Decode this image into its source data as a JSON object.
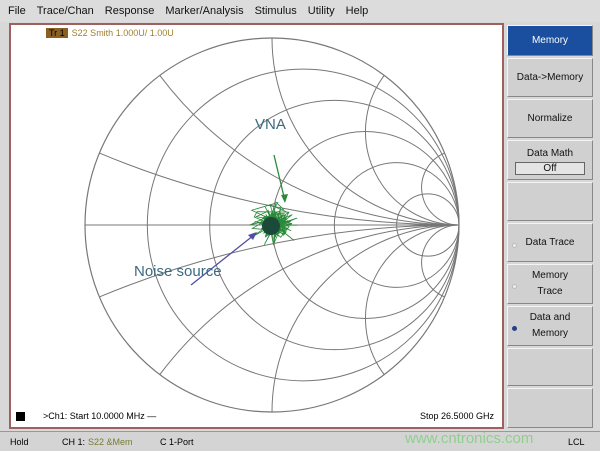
{
  "menu": [
    "File",
    "Trace/Chan",
    "Response",
    "Marker/Analysis",
    "Stimulus",
    "Utility",
    "Help"
  ],
  "trace": {
    "tag": "Tr 1",
    "label": "S22 Smith 1.000U/  1.00U"
  },
  "annotations": {
    "vna": "VNA",
    "noise": "Noise source"
  },
  "footer": {
    "start": ">Ch1: Start  10.0000 MHz —",
    "stop": "Stop  26.5000 GHz"
  },
  "softkeys": {
    "memory": "Memory",
    "data_to_memory": "Data->Memory",
    "normalize": "Normalize",
    "data_math": "Data Math",
    "data_math_value": "Off",
    "data_trace": "Data Trace",
    "memory_trace_1": "Memory",
    "memory_trace_2": "Trace",
    "data_and_memory_1": "Data and",
    "data_and_memory_2": "Memory"
  },
  "status": {
    "hold": "Hold",
    "ch": "CH 1:",
    "meas": "S22 &Mem",
    "cal": "C 1-Port",
    "ref": "LCL"
  },
  "watermark": "www.cntronics.com",
  "colors": {
    "trace": "#2a8a3a",
    "accent": "#1a4fa0",
    "noise_arrow": "#5050a0"
  }
}
